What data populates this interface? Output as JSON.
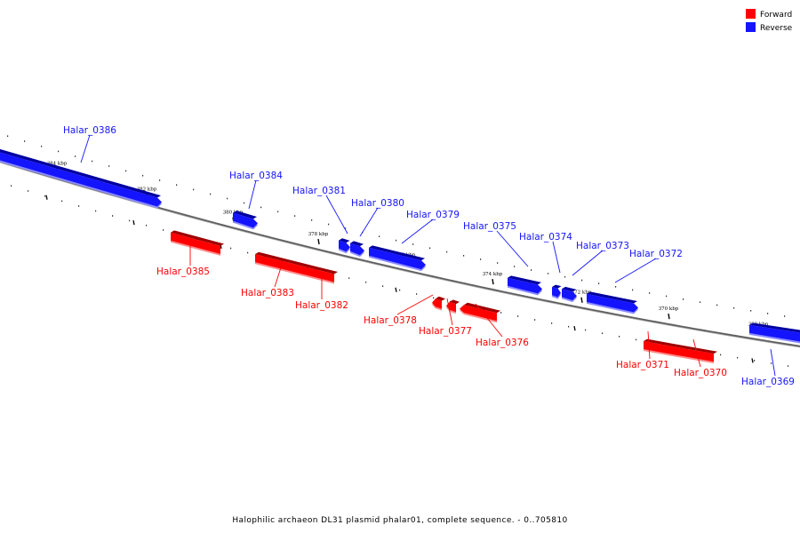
{
  "caption": "Halophilic archaeon DL31 plasmid phalar01, complete sequence. - 0..705810",
  "legend": [
    {
      "label": "Forward",
      "color": "#ff0000"
    },
    {
      "label": "Reverse",
      "color": "#1414ff"
    }
  ],
  "colors": {
    "forward": "#ff0000",
    "reverse": "#1414ff",
    "backbone": "#808080",
    "tick": "#000000"
  },
  "scale_ticks": [
    {
      "label": "384 kbp"
    },
    {
      "label": "382 kbp"
    },
    {
      "label": "380 kbp"
    },
    {
      "label": "378 kbp"
    },
    {
      "label": "376 kbp"
    },
    {
      "label": "374 kbp"
    },
    {
      "label": "372 kbp"
    },
    {
      "label": "370 kbp"
    },
    {
      "label": "368 kbp"
    }
  ],
  "genes": [
    {
      "name": "Halar_0386",
      "strand": "reverse"
    },
    {
      "name": "Halar_0385",
      "strand": "forward"
    },
    {
      "name": "Halar_0384",
      "strand": "reverse"
    },
    {
      "name": "Halar_0383",
      "strand": "forward"
    },
    {
      "name": "Halar_0382",
      "strand": "forward"
    },
    {
      "name": "Halar_0381",
      "strand": "reverse"
    },
    {
      "name": "Halar_0380",
      "strand": "reverse"
    },
    {
      "name": "Halar_0379",
      "strand": "reverse"
    },
    {
      "name": "Halar_0378",
      "strand": "forward"
    },
    {
      "name": "Halar_0377",
      "strand": "forward"
    },
    {
      "name": "Halar_0376",
      "strand": "forward"
    },
    {
      "name": "Halar_0375",
      "strand": "reverse"
    },
    {
      "name": "Halar_0374",
      "strand": "reverse"
    },
    {
      "name": "Halar_0373",
      "strand": "reverse"
    },
    {
      "name": "Halar_0372",
      "strand": "reverse"
    },
    {
      "name": "Halar_0371",
      "strand": "forward"
    },
    {
      "name": "Halar_0370",
      "strand": "forward"
    },
    {
      "name": "Halar_0369",
      "strand": "reverse"
    }
  ]
}
